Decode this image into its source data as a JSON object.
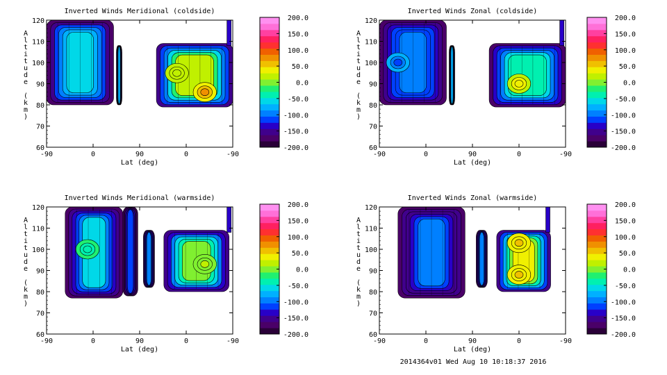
{
  "footer": "2014364v01 Wed Aug 10 10:18:37 2016",
  "colorbar_levels": [
    "200.0",
    "150.0",
    "100.0",
    "50.0",
    "0.0",
    "-50.0",
    "-100.0",
    "-150.0",
    "-200.0"
  ],
  "colorbar_colors": [
    "#2a0038",
    "#4a0068",
    "#40008c",
    "#2800c8",
    "#0040ff",
    "#0080ff",
    "#00b0ff",
    "#00d8e8",
    "#00f0b0",
    "#20f070",
    "#80f030",
    "#c0f000",
    "#f0f000",
    "#f0c000",
    "#f09000",
    "#f06000",
    "#ff3030",
    "#ff2060",
    "#ff40a0",
    "#ff70d8",
    "#ff90f0"
  ],
  "chart_data": [
    {
      "type": "heatmap",
      "title": "Inverted Winds Meridional (coldside)",
      "xlabel": "Lat (deg)",
      "ylabel": "Altitude (km)",
      "x_ticks": [
        "-90",
        "0",
        "90",
        "0",
        "-90"
      ],
      "y_ticks": [
        "60",
        "70",
        "80",
        "90",
        "100",
        "110",
        "120"
      ],
      "ylim": [
        60,
        120
      ],
      "colorbar": {
        "min": -200,
        "max": 200,
        "step": 50
      },
      "bands": [
        {
          "x0": 0.0,
          "x1": 0.36,
          "y0": 80,
          "y1": 120,
          "level": -60,
          "edge": [
            80,
            80
          ]
        },
        {
          "x0": 0.375,
          "x1": 0.405,
          "y0": 80,
          "y1": 108,
          "level": -80,
          "edge": [
            80,
            80
          ]
        },
        {
          "x0": 0.59,
          "x1": 1.0,
          "y0": 79,
          "y1": 109,
          "level": 10,
          "edge": [
            79,
            79
          ]
        }
      ],
      "hotspots": [
        {
          "x": 0.85,
          "y": 86,
          "level": 70
        },
        {
          "x": 0.7,
          "y": 95,
          "level": 20
        }
      ],
      "spike": {
        "x": 0.98,
        "y0": 108,
        "y1": 120
      }
    },
    {
      "type": "heatmap",
      "title": "Inverted Winds Zonal (coldside)",
      "xlabel": "Lat (deg)",
      "ylabel": "Altitude (km)",
      "x_ticks": [
        "-90",
        "0",
        "90",
        "0",
        "-90"
      ],
      "y_ticks": [
        "60",
        "70",
        "80",
        "90",
        "100",
        "110",
        "120"
      ],
      "ylim": [
        60,
        120
      ],
      "colorbar": {
        "min": -200,
        "max": 200,
        "step": 50
      },
      "bands": [
        {
          "x0": 0.0,
          "x1": 0.36,
          "y0": 80,
          "y1": 120,
          "level": -95,
          "edge": [
            80,
            80
          ]
        },
        {
          "x0": 0.375,
          "x1": 0.405,
          "y0": 80,
          "y1": 108,
          "level": -90,
          "edge": [
            80,
            80
          ]
        },
        {
          "x0": 0.59,
          "x1": 1.0,
          "y0": 79,
          "y1": 109,
          "level": -40,
          "edge": [
            79,
            79
          ]
        }
      ],
      "hotspots": [
        {
          "x": 0.75,
          "y": 90,
          "level": 40
        },
        {
          "x": 0.1,
          "y": 100,
          "level": -130
        }
      ],
      "spike": {
        "x": 0.98,
        "y0": 108,
        "y1": 120
      }
    },
    {
      "type": "heatmap",
      "title": "Inverted Winds Meridional (warmside)",
      "xlabel": "Lat (deg)",
      "ylabel": "Altitude (km)",
      "x_ticks": [
        "-90",
        "0",
        "90",
        "0",
        "-90"
      ],
      "y_ticks": [
        "60",
        "70",
        "80",
        "90",
        "100",
        "110",
        "120"
      ],
      "ylim": [
        60,
        120
      ],
      "colorbar": {
        "min": -200,
        "max": 200,
        "step": 50
      },
      "bands": [
        {
          "x0": 0.1,
          "x1": 0.41,
          "y0": 77,
          "y1": 120,
          "level": -70,
          "edge": [
            77,
            80
          ]
        },
        {
          "x0": 0.41,
          "x1": 0.49,
          "y0": 78,
          "y1": 120,
          "level": -120,
          "edge": [
            78,
            80
          ]
        },
        {
          "x0": 0.52,
          "x1": 0.58,
          "y0": 82,
          "y1": 109,
          "level": -100,
          "edge": [
            82,
            82
          ]
        },
        {
          "x0": 0.63,
          "x1": 0.98,
          "y0": 80,
          "y1": 109,
          "level": 0,
          "edge": [
            80,
            80
          ]
        }
      ],
      "hotspots": [
        {
          "x": 0.85,
          "y": 93,
          "level": 10
        },
        {
          "x": 0.22,
          "y": 100,
          "level": -40
        }
      ],
      "spike": {
        "x": 0.98,
        "y0": 108,
        "y1": 120
      }
    },
    {
      "type": "heatmap",
      "title": "Inverted Winds Zonal (warmside)",
      "xlabel": "Lat (deg)",
      "ylabel": "Altitude (km)",
      "x_ticks": [
        "-90",
        "0",
        "90",
        "0",
        "-90"
      ],
      "y_ticks": [
        "60",
        "70",
        "80",
        "90",
        "100",
        "110",
        "120"
      ],
      "ylim": [
        60,
        120
      ],
      "colorbar": {
        "min": -200,
        "max": 200,
        "step": 50
      },
      "bands": [
        {
          "x0": 0.1,
          "x1": 0.46,
          "y0": 77,
          "y1": 120,
          "level": -110,
          "edge": [
            77,
            80
          ]
        },
        {
          "x0": 0.52,
          "x1": 0.58,
          "y0": 82,
          "y1": 109,
          "level": -100,
          "edge": [
            82,
            82
          ]
        },
        {
          "x0": 0.63,
          "x1": 0.92,
          "y0": 80,
          "y1": 109,
          "level": 30,
          "edge": [
            80,
            80
          ]
        }
      ],
      "hotspots": [
        {
          "x": 0.75,
          "y": 103,
          "level": 60
        },
        {
          "x": 0.75,
          "y": 88,
          "level": 55
        }
      ],
      "spike": {
        "x": 0.905,
        "y0": 108,
        "y1": 120
      }
    }
  ]
}
